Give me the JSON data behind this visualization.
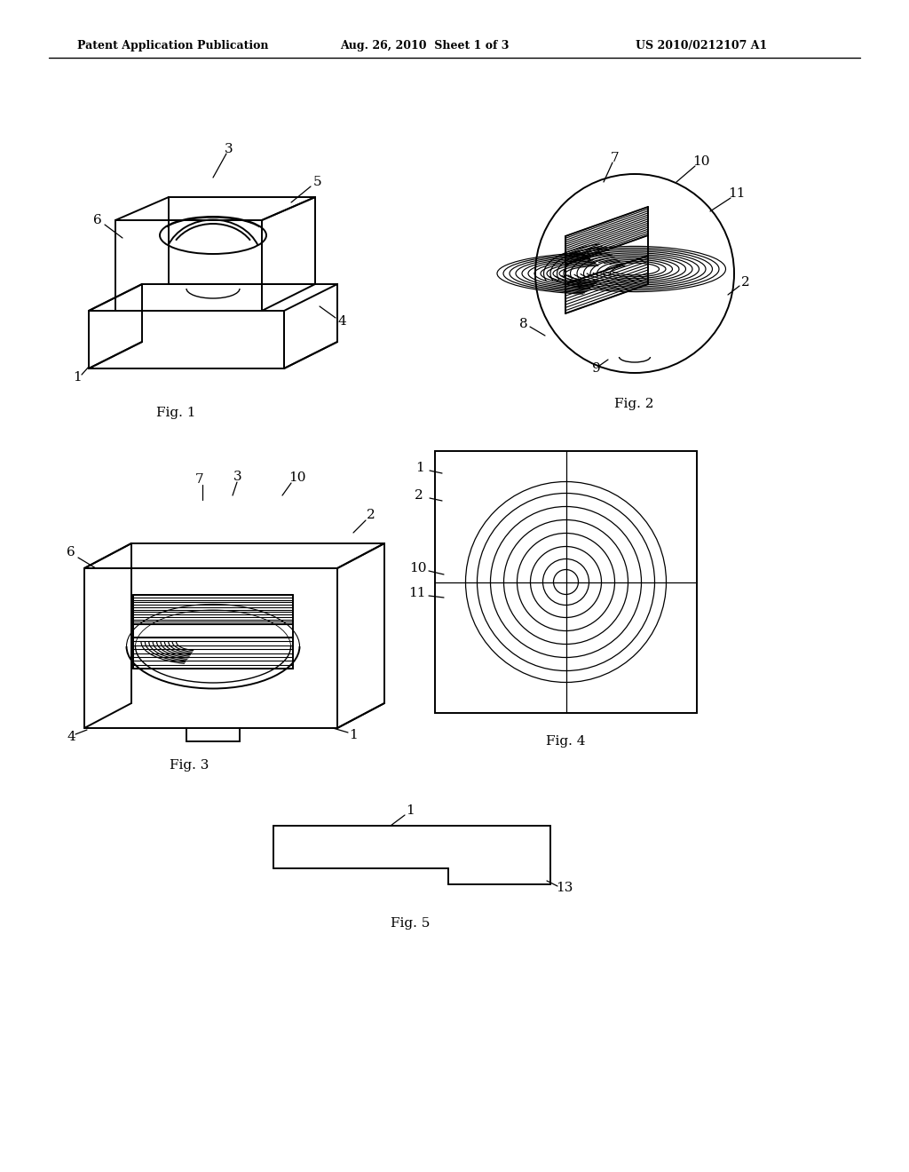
{
  "bg_color": "#ffffff",
  "line_color": "#000000",
  "header_left": "Patent Application Publication",
  "header_mid": "Aug. 26, 2010  Sheet 1 of 3",
  "header_right": "US 2010/0212107 A1",
  "fig1_label": "Fig. 1",
  "fig2_label": "Fig. 2",
  "fig3_label": "Fig. 3",
  "fig4_label": "Fig. 4",
  "fig5_label": "Fig. 5"
}
